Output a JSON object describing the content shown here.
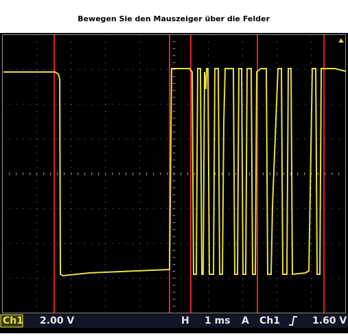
{
  "header": {
    "title": "Bewegen Sie den Mauszeiger über die Felder"
  },
  "status_bar": {
    "channel": "Ch1",
    "volts_per_div": "2.00 V",
    "horizontal_label": "H",
    "time_per_div": "1 ms",
    "trigger_label": "A",
    "trigger_channel": "Ch1",
    "trigger_level": "1.60 V"
  }
}
